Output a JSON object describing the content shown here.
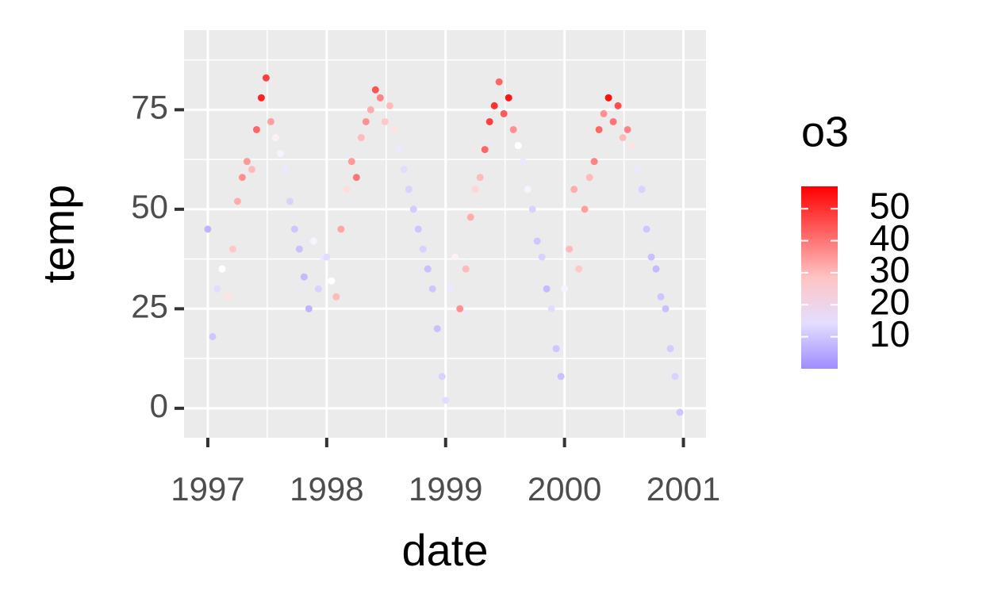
{
  "chart_data": {
    "type": "scatter",
    "x_label": "date",
    "y_label": "temp",
    "xlim": [
      1996.8,
      2001.19
    ],
    "xticks": [
      1997,
      1998,
      1999,
      2000,
      2001
    ],
    "ylim": [
      -7.4,
      95
    ],
    "yticks": [
      0,
      25,
      50,
      75
    ],
    "grid": true,
    "color_title": "o3",
    "color_lim": [
      0,
      57
    ],
    "color_ticks": [
      10,
      20,
      30,
      40,
      50
    ],
    "color_low": "#9f8cff",
    "color_mid": "#ffffff",
    "color_high": "#ff0000",
    "color_midpoint": 20,
    "x": [
      1997.0,
      1997.04,
      1997.08,
      1997.12,
      1997.17,
      1997.21,
      1997.25,
      1997.29,
      1997.33,
      1997.37,
      1997.41,
      1997.45,
      1997.49,
      1997.53,
      1997.57,
      1997.61,
      1997.65,
      1997.69,
      1997.73,
      1997.77,
      1997.81,
      1997.85,
      1997.89,
      1997.93,
      1997.97,
      1998.0,
      1998.04,
      1998.08,
      1998.12,
      1998.17,
      1998.21,
      1998.25,
      1998.29,
      1998.33,
      1998.37,
      1998.41,
      1998.45,
      1998.49,
      1998.53,
      1998.57,
      1998.61,
      1998.65,
      1998.69,
      1998.73,
      1998.77,
      1998.81,
      1998.85,
      1998.89,
      1998.93,
      1998.97,
      1999.0,
      1999.04,
      1999.08,
      1999.12,
      1999.17,
      1999.21,
      1999.25,
      1999.29,
      1999.33,
      1999.37,
      1999.41,
      1999.45,
      1999.49,
      1999.53,
      1999.57,
      1999.61,
      1999.65,
      1999.69,
      1999.73,
      1999.77,
      1999.81,
      1999.85,
      1999.89,
      1999.93,
      1999.97,
      2000.0,
      2000.04,
      2000.08,
      2000.12,
      2000.17,
      2000.21,
      2000.25,
      2000.29,
      2000.33,
      2000.37,
      2000.41,
      2000.45,
      2000.49,
      2000.53,
      2000.57,
      2000.61,
      2000.65,
      2000.69,
      2000.73,
      2000.77,
      2000.81,
      2000.85,
      2000.89,
      2000.93,
      2000.97
    ],
    "values": [
      45,
      18,
      30,
      35,
      28,
      40,
      52,
      58,
      62,
      60,
      70,
      78,
      83,
      72,
      68,
      64,
      60,
      52,
      45,
      40,
      33,
      25,
      42,
      30,
      38,
      38,
      32,
      28,
      45,
      55,
      62,
      58,
      68,
      72,
      75,
      80,
      78,
      72,
      76,
      70,
      65,
      60,
      55,
      50,
      45,
      40,
      35,
      30,
      20,
      8,
      2,
      30,
      38,
      25,
      35,
      48,
      55,
      58,
      65,
      72,
      76,
      82,
      74,
      78,
      70,
      66,
      62,
      55,
      50,
      42,
      38,
      30,
      25,
      15,
      8,
      30,
      40,
      55,
      35,
      50,
      58,
      62,
      70,
      74,
      78,
      72,
      76,
      68,
      70,
      66,
      60,
      55,
      45,
      38,
      35,
      28,
      25,
      15,
      8,
      -1
    ],
    "color_values": [
      7,
      10,
      14,
      20,
      24,
      28,
      32,
      36,
      35,
      30,
      42,
      52,
      48,
      34,
      22,
      18,
      16,
      12,
      10,
      9,
      8,
      7,
      18,
      12,
      16,
      14,
      20,
      30,
      33,
      25,
      35,
      40,
      30,
      36,
      32,
      45,
      38,
      28,
      30,
      24,
      16,
      14,
      12,
      11,
      10,
      12,
      9,
      10,
      9,
      12,
      14,
      16,
      22,
      36,
      30,
      32,
      26,
      30,
      42,
      48,
      50,
      42,
      44,
      54,
      36,
      20,
      16,
      18,
      12,
      10,
      12,
      8,
      14,
      10,
      9,
      18,
      30,
      32,
      28,
      34,
      30,
      38,
      42,
      36,
      55,
      40,
      46,
      30,
      38,
      24,
      16,
      12,
      10,
      9,
      8,
      10,
      9,
      11,
      12,
      10
    ]
  }
}
